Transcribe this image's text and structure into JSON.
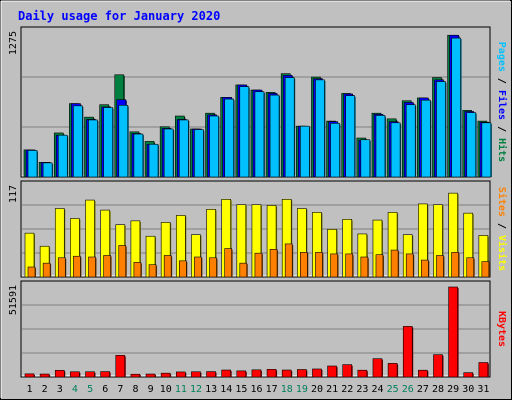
{
  "chart_data": [
    {
      "type": "bar",
      "title": "Daily usage for January 2020",
      "panel": "hits-files-pages",
      "ylabel_parts": [
        {
          "text": "Pages",
          "color": "#00c0ff"
        },
        {
          "text": " / ",
          "color": "#000000"
        },
        {
          "text": "Files",
          "color": "#0000ff"
        },
        {
          "text": " / ",
          "color": "#000000"
        },
        {
          "text": "Hits",
          "color": "#008040"
        }
      ],
      "ymax_label": "1275",
      "ylim": [
        0,
        1275
      ],
      "categories": [
        "1",
        "2",
        "3",
        "4",
        "5",
        "6",
        "7",
        "8",
        "9",
        "10",
        "11",
        "12",
        "13",
        "14",
        "15",
        "16",
        "17",
        "18",
        "19",
        "20",
        "21",
        "22",
        "23",
        "24",
        "25",
        "26",
        "27",
        "28",
        "29",
        "30",
        "31"
      ],
      "weekend_days": [
        "4",
        "5",
        "11",
        "12",
        "18",
        "19",
        "25",
        "26"
      ],
      "series": [
        {
          "name": "Hits",
          "color": "#008040",
          "values": [
            240,
            130,
            390,
            650,
            530,
            640,
            905,
            400,
            315,
            445,
            540,
            425,
            565,
            705,
            815,
            770,
            750,
            915,
            450,
            885,
            495,
            740,
            345,
            565,
            515,
            675,
            700,
            880,
            1255,
            590,
            495
          ]
        },
        {
          "name": "Files",
          "color": "#0000ff",
          "values": [
            240,
            130,
            370,
            650,
            510,
            620,
            685,
            385,
            290,
            430,
            510,
            425,
            550,
            705,
            815,
            770,
            740,
            900,
            450,
            870,
            490,
            735,
            325,
            555,
            490,
            660,
            700,
            860,
            1255,
            580,
            485
          ]
        },
        {
          "name": "Pages",
          "color": "#00c0ff",
          "values": [
            235,
            125,
            370,
            630,
            505,
            615,
            635,
            380,
            290,
            425,
            505,
            420,
            540,
            690,
            800,
            755,
            725,
            880,
            450,
            860,
            475,
            720,
            330,
            545,
            480,
            640,
            680,
            845,
            1230,
            570,
            480
          ]
        }
      ]
    },
    {
      "type": "bar",
      "panel": "visits-sites",
      "ylabel_parts": [
        {
          "text": "Sites",
          "color": "#ff8000"
        },
        {
          "text": " / ",
          "color": "#000000"
        },
        {
          "text": "Visits",
          "color": "#ffff00"
        }
      ],
      "ymax_label": "117",
      "ylim": [
        0,
        117
      ],
      "categories": [
        "1",
        "2",
        "3",
        "4",
        "5",
        "6",
        "7",
        "8",
        "9",
        "10",
        "11",
        "12",
        "13",
        "14",
        "15",
        "16",
        "17",
        "18",
        "19",
        "20",
        "21",
        "22",
        "23",
        "24",
        "25",
        "26",
        "27",
        "28",
        "29",
        "30",
        "31"
      ],
      "series": [
        {
          "name": "Visits",
          "color": "#ffff00",
          "values": [
            57,
            40,
            89,
            76,
            100,
            87,
            68,
            73,
            53,
            71,
            80,
            55,
            88,
            101,
            94,
            94,
            93,
            101,
            89,
            84,
            62,
            75,
            56,
            74,
            84,
            55,
            95,
            94,
            109,
            83,
            54
          ]
        },
        {
          "name": "Sites",
          "color": "#ff8000",
          "values": [
            13,
            18,
            25,
            27,
            26,
            28,
            41,
            19,
            16,
            28,
            21,
            26,
            25,
            37,
            18,
            31,
            36,
            43,
            32,
            32,
            30,
            30,
            26,
            29,
            35,
            30,
            22,
            28,
            32,
            25,
            20
          ]
        }
      ]
    },
    {
      "type": "bar",
      "panel": "kbytes",
      "ylabel_parts": [
        {
          "text": "KBytes",
          "color": "#ff0000"
        }
      ],
      "ymax_label": "51591",
      "ylim": [
        0,
        51591
      ],
      "categories": [
        "1",
        "2",
        "3",
        "4",
        "5",
        "6",
        "7",
        "8",
        "9",
        "10",
        "11",
        "12",
        "13",
        "14",
        "15",
        "16",
        "17",
        "18",
        "19",
        "20",
        "21",
        "22",
        "23",
        "24",
        "25",
        "26",
        "27",
        "28",
        "29",
        "30",
        "31"
      ],
      "series": [
        {
          "name": "KBytes",
          "color": "#ff0000",
          "values": [
            1800,
            1700,
            3800,
            3000,
            3000,
            3100,
            12400,
            1600,
            1700,
            2200,
            2900,
            3000,
            3100,
            4000,
            3500,
            4100,
            4400,
            4000,
            4300,
            4600,
            6300,
            7100,
            3900,
            10500,
            7800,
            29000,
            3900,
            12800,
            51591,
            2500,
            8300
          ]
        }
      ]
    }
  ]
}
